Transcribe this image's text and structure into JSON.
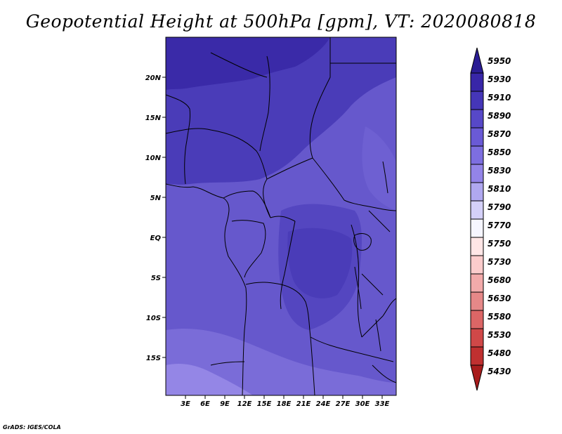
{
  "title": "Geopotential Height at 500hPa [gpm], VT: 2020080818",
  "credit": "GrADS: IGES/COLA",
  "lat_ticks": [
    "20N",
    "15N",
    "10N",
    "5N",
    "EQ",
    "5S",
    "10S",
    "15S"
  ],
  "lon_ticks": [
    "3E",
    "6E",
    "9E",
    "12E",
    "15E",
    "18E",
    "21E",
    "24E",
    "27E",
    "30E",
    "33E"
  ],
  "colorbar": {
    "levels": [
      "5950",
      "5930",
      "5910",
      "5890",
      "5870",
      "5850",
      "5830",
      "5810",
      "5790",
      "5770",
      "5750",
      "5730",
      "5680",
      "5630",
      "5580",
      "5530",
      "5480",
      "5430"
    ],
    "colors": [
      "#2a1c94",
      "#3826a8",
      "#4536b8",
      "#5748c8",
      "#6a5ad6",
      "#7d6ee0",
      "#9384e8",
      "#b0a8f0",
      "#d4d0f8",
      "#f6f6ff",
      "#ffe6e6",
      "#fccccc",
      "#f2aaaa",
      "#e68888",
      "#dc6666",
      "#d04848",
      "#c03030",
      "#a81c1c"
    ]
  },
  "fill_levels": {
    "deep": "#3a2aa8",
    "mid": "#4a3cb8",
    "light": "#6658cc",
    "lighter": "#7a6cd8",
    "pale": "#9486e6"
  }
}
